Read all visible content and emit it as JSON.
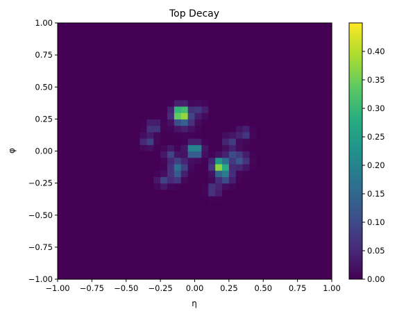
{
  "chart_data": {
    "type": "heatmap",
    "title": "Top Decay",
    "xlabel": "η",
    "ylabel": "φ",
    "xlim": [
      -1.0,
      1.0
    ],
    "ylim": [
      -1.0,
      1.0
    ],
    "bins": [
      40,
      40
    ],
    "colormap": "viridis",
    "xticks": [
      "−1.00",
      "−0.75",
      "−0.50",
      "−0.25",
      "0.00",
      "0.25",
      "0.50",
      "0.75",
      "1.00"
    ],
    "yticks": [
      "−1.00",
      "−0.75",
      "−0.50",
      "−0.25",
      "0.00",
      "0.25",
      "0.50",
      "0.75",
      "1.00"
    ],
    "colorbar": {
      "range": [
        0.0,
        0.45
      ],
      "ticks": [
        "0.00",
        "0.05",
        "0.10",
        "0.15",
        "0.20",
        "0.25",
        "0.30",
        "0.35",
        "0.40"
      ]
    },
    "clusters": [
      {
        "eta": -0.1,
        "phi": 0.3,
        "peak": 0.45,
        "width": 0.035
      },
      {
        "eta": -0.08,
        "phi": 0.25,
        "peak": 0.12,
        "width": 0.05
      },
      {
        "eta": 0.04,
        "phi": 0.32,
        "peak": 0.08,
        "width": 0.03
      },
      {
        "eta": -0.3,
        "phi": 0.19,
        "peak": 0.1,
        "width": 0.03
      },
      {
        "eta": -0.34,
        "phi": 0.08,
        "peak": 0.1,
        "width": 0.03
      },
      {
        "eta": 0.0,
        "phi": 0.01,
        "peak": 0.28,
        "width": 0.035
      },
      {
        "eta": -0.18,
        "phi": -0.02,
        "peak": 0.09,
        "width": 0.03
      },
      {
        "eta": 0.19,
        "phi": -0.11,
        "peak": 0.42,
        "width": 0.035
      },
      {
        "eta": 0.22,
        "phi": -0.19,
        "peak": 0.15,
        "width": 0.04
      },
      {
        "eta": -0.12,
        "phi": -0.12,
        "peak": 0.16,
        "width": 0.04
      },
      {
        "eta": -0.14,
        "phi": -0.2,
        "peak": 0.1,
        "width": 0.03
      },
      {
        "eta": -0.23,
        "phi": -0.23,
        "peak": 0.09,
        "width": 0.03
      },
      {
        "eta": 0.14,
        "phi": -0.3,
        "peak": 0.1,
        "width": 0.03
      },
      {
        "eta": 0.33,
        "phi": -0.07,
        "peak": 0.12,
        "width": 0.04
      },
      {
        "eta": 0.26,
        "phi": 0.08,
        "peak": 0.09,
        "width": 0.03
      },
      {
        "eta": 0.36,
        "phi": 0.14,
        "peak": 0.09,
        "width": 0.03
      },
      {
        "eta": 0.27,
        "phi": -0.02,
        "peak": 0.08,
        "width": 0.03
      }
    ]
  }
}
